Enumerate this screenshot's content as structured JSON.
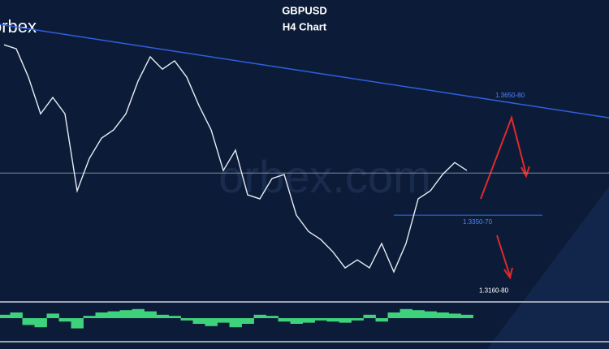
{
  "chart_data": {
    "type": "line",
    "title": "GBPUSD",
    "subtitle": "H4 Chart",
    "logo": "orbex",
    "watermark": "orbex.com",
    "series": [
      {
        "name": "GBPUSD",
        "color": "#e8ecf4",
        "values": [
          1.3819,
          1.3808,
          1.373,
          1.3629,
          1.3674,
          1.3629,
          1.3417,
          1.3506,
          1.3562,
          1.3585,
          1.3629,
          1.3719,
          1.3786,
          1.3752,
          1.3775,
          1.373,
          1.3652,
          1.3585,
          1.3473,
          1.3529,
          1.3406,
          1.3395,
          1.3451,
          1.3462,
          1.335,
          1.3305,
          1.3283,
          1.3249,
          1.3205,
          1.3227,
          1.3205,
          1.3272,
          1.3194,
          1.3272,
          1.3395,
          1.3417,
          1.3462,
          1.3495,
          1.3473
        ]
      }
    ],
    "oscillator": {
      "color": "#3fd27c",
      "values": [
        0.3,
        0.5,
        -0.6,
        -0.8,
        0.4,
        -0.3,
        -0.9,
        0.2,
        0.5,
        0.6,
        0.7,
        0.8,
        0.6,
        0.3,
        0.2,
        -0.2,
        -0.5,
        -0.7,
        -0.4,
        -0.8,
        -0.5,
        0.3,
        0.2,
        -0.3,
        -0.5,
        -0.4,
        -0.2,
        -0.3,
        -0.4,
        -0.2,
        0.3,
        -0.3,
        0.5,
        0.8,
        0.7,
        0.6,
        0.5,
        0.4,
        0.3
      ],
      "ylim": [
        -1,
        1
      ]
    },
    "ylim": [
      1.3138,
      1.392
    ],
    "trendline": {
      "color": "#2f5fe0",
      "values": [
        1.3875,
        1.3618
      ],
      "label": "1.3650-80"
    },
    "current_price": 1.3466,
    "levels": [
      {
        "label": "1.3350-70",
        "value": 1.335,
        "color": "#2f6fe8"
      },
      {
        "label": "1.3160-80",
        "value": 1.316
      }
    ]
  }
}
